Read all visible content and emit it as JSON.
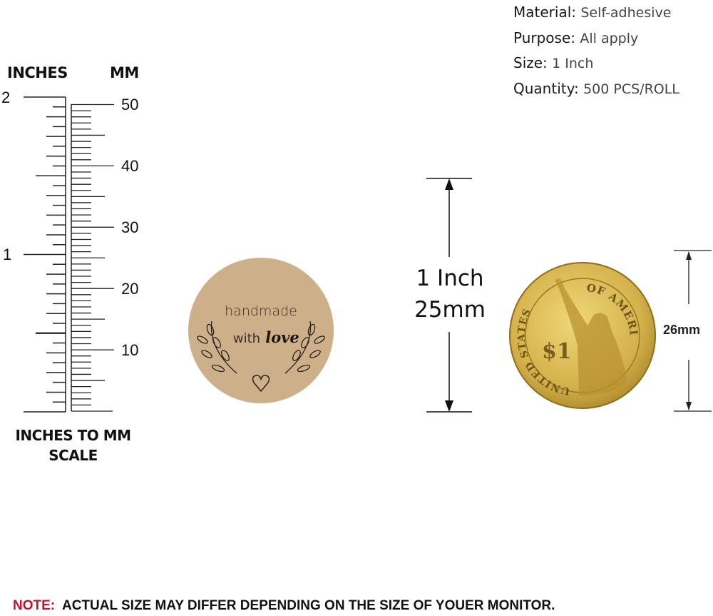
{
  "specs": [
    {
      "label": "Material:",
      "value": "Self-adhesive"
    },
    {
      "label": "Purpose:",
      "value": "All apply"
    },
    {
      "label": "Size:",
      "value": "1 Inch"
    },
    {
      "label": "Quantity:",
      "value": "500 PCS/ROLL"
    }
  ],
  "ruler": {
    "inches_label": "INCHES",
    "mm_label": "MM",
    "inch_numbers": [
      "2",
      "1"
    ],
    "mm_numbers": [
      "50",
      "40",
      "30",
      "20",
      "10"
    ],
    "caption_line1": "INCHES TO MM",
    "caption_line2": "SCALE"
  },
  "sticker": {
    "line1": "handmade",
    "line2_plain": "with",
    "line2_script": "love",
    "color": "#cdb08a"
  },
  "sticker_dimension": {
    "line1": "1 Inch",
    "line2": "25mm"
  },
  "coin": {
    "top_text": "OF AMERICA",
    "left_text": "UNITED STATES",
    "denomination": "$1",
    "color": "#d4b14a"
  },
  "coin_dimension": "26mm",
  "note": {
    "prefix": "NOTE:",
    "text": "ACTUAL SIZE MAY DIFFER DEPENDING ON THE SIZE OF YOUER MONITOR."
  }
}
